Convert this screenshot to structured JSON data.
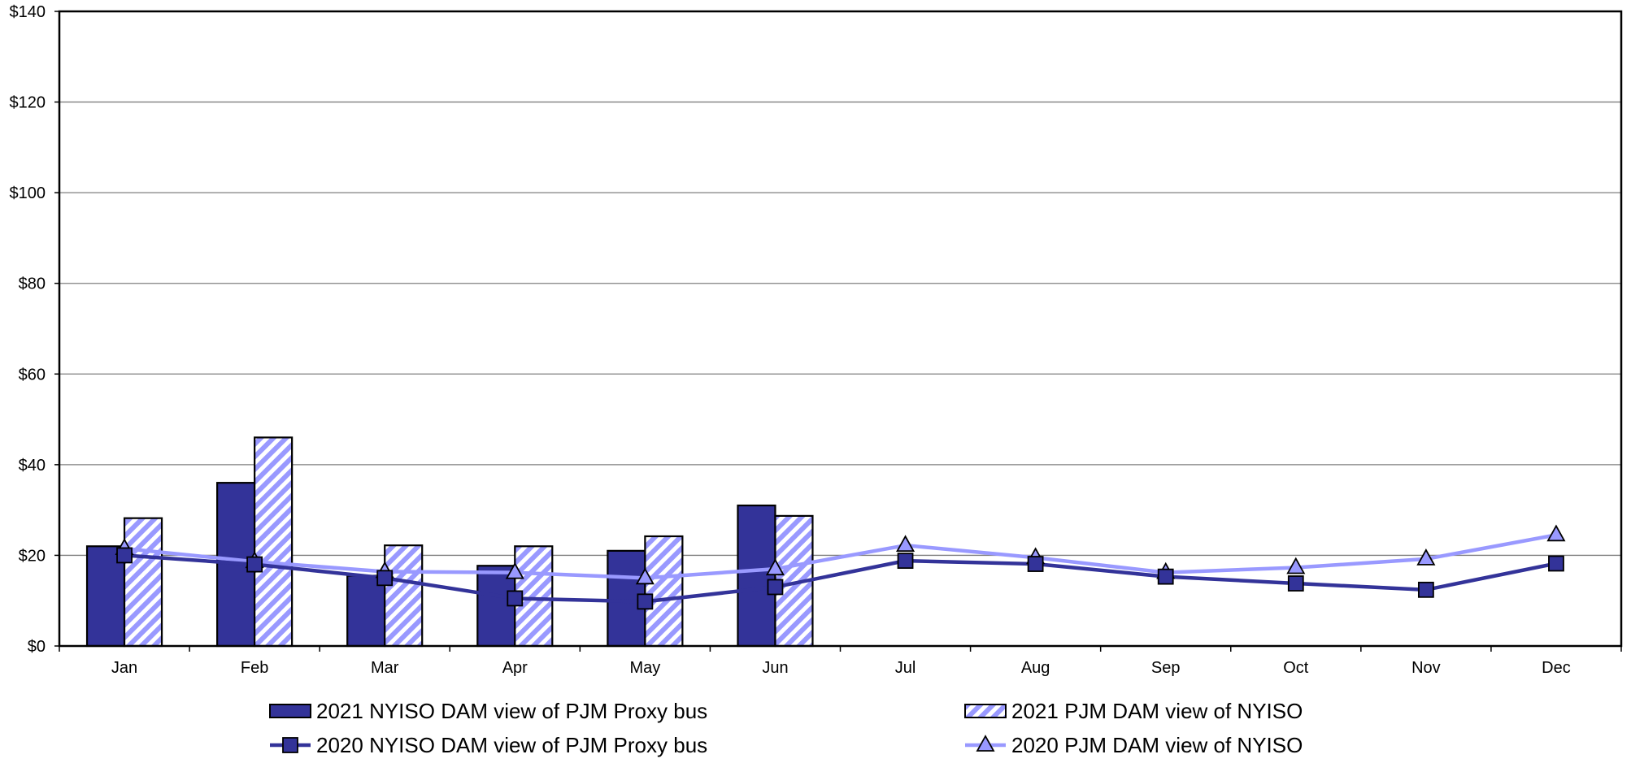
{
  "chart_data": {
    "type": "bar",
    "categories": [
      "Jan",
      "Feb",
      "Mar",
      "Apr",
      "May",
      "Jun",
      "Jul",
      "Aug",
      "Sep",
      "Oct",
      "Nov",
      "Dec"
    ],
    "y_tick_labels": [
      "$0",
      "$20",
      "$40",
      "$60",
      "$80",
      "$100",
      "$120",
      "$140"
    ],
    "ylim": [
      0,
      140
    ],
    "grid": true,
    "legend_position": "bottom",
    "series": [
      {
        "name": "2021 NYISO DAM view of PJM Proxy bus",
        "kind": "bar",
        "style": "solid",
        "color": "#333399",
        "values": [
          22,
          36,
          15.5,
          17.7,
          21,
          31,
          null,
          null,
          null,
          null,
          null,
          null
        ]
      },
      {
        "name": "2021 PJM DAM view of NYISO",
        "kind": "bar",
        "style": "hatched",
        "color": "#9999ff",
        "values": [
          28.2,
          46,
          22.2,
          22,
          24.2,
          28.7,
          null,
          null,
          null,
          null,
          null,
          null
        ]
      },
      {
        "name": "2020 NYISO DAM view of PJM Proxy bus",
        "kind": "line",
        "marker": "square",
        "color": "#333399",
        "values": [
          20,
          18,
          15,
          10.5,
          9.8,
          13,
          18.8,
          18.1,
          15.3,
          13.8,
          12.4,
          18.2
        ]
      },
      {
        "name": "2020 PJM DAM view of NYISO",
        "kind": "line",
        "marker": "triangle",
        "color": "#9999ff",
        "values": [
          21.5,
          18.6,
          16.4,
          16.2,
          15,
          17,
          22.2,
          19.5,
          16.2,
          17.3,
          19.2,
          24.5
        ]
      }
    ]
  }
}
